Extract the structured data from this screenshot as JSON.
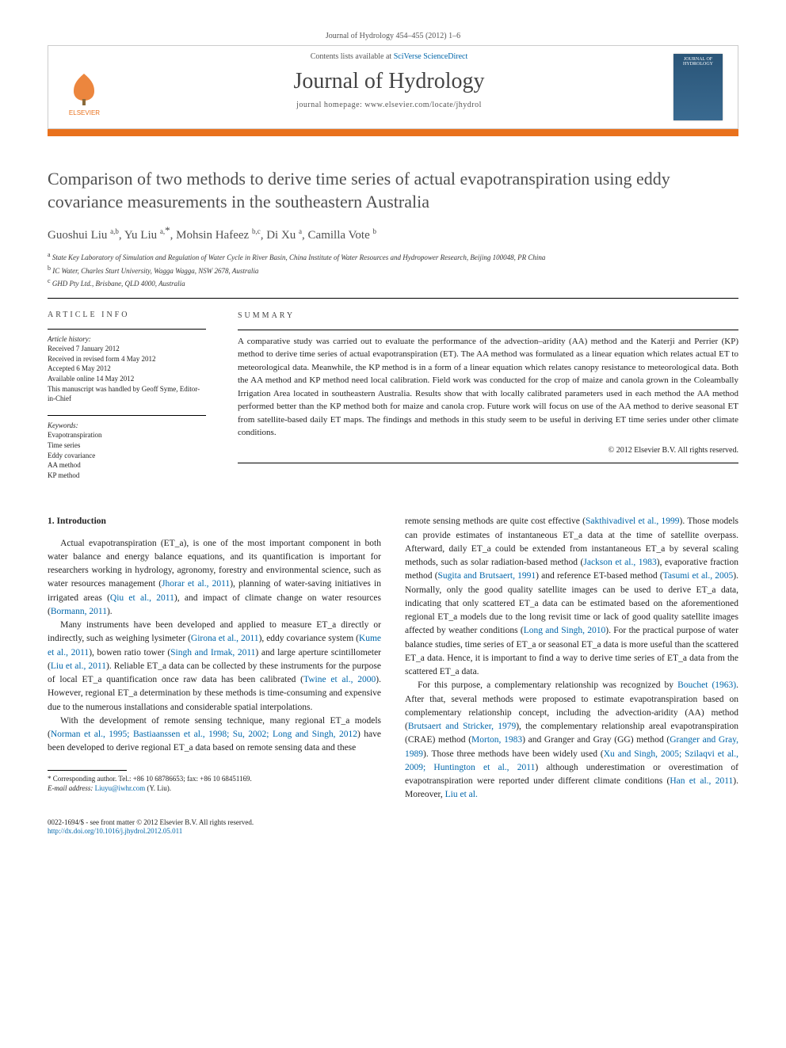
{
  "top_citation": "Journal of Hydrology 454–455 (2012) 1–6",
  "header": {
    "contents_prefix": "Contents lists available at ",
    "contents_link": "SciVerse ScienceDirect",
    "journal_title": "Journal of Hydrology",
    "homepage_prefix": "journal homepage: ",
    "homepage_url": "www.elsevier.com/locate/jhydrol",
    "publisher_name": "ELSEVIER",
    "cover_text": "JOURNAL OF HYDROLOGY"
  },
  "article": {
    "title": "Comparison of two methods to derive time series of actual evapotranspiration using eddy covariance measurements in the southeastern Australia",
    "authors_html": "Guoshui Liu <sup>a,b</sup>, Yu Liu <sup>a,</sup><span class='star'>*</span>, Mohsin Hafeez <sup>b,c</sup>, Di Xu <sup>a</sup>, Camilla Vote <sup>b</sup>",
    "affiliations": [
      {
        "sup": "a",
        "text": "State Key Laboratory of Simulation and Regulation of Water Cycle in River Basin, China Institute of Water Resources and Hydropower Research, Beijing 100048, PR China"
      },
      {
        "sup": "b",
        "text": "IC Water, Charles Sturt University, Wagga Wagga, NSW 2678, Australia"
      },
      {
        "sup": "c",
        "text": "GHD Pty Ltd., Brisbane, QLD 4000, Australia"
      }
    ]
  },
  "article_info": {
    "heading": "article info",
    "history_label": "Article history:",
    "history": [
      "Received 7 January 2012",
      "Received in revised form 4 May 2012",
      "Accepted 6 May 2012",
      "Available online 14 May 2012",
      "This manuscript was handled by Geoff Syme, Editor-in-Chief"
    ],
    "keywords_label": "Keywords:",
    "keywords": [
      "Evapotranspiration",
      "Time series",
      "Eddy covariance",
      "AA method",
      "KP method"
    ]
  },
  "summary": {
    "heading": "summary",
    "text": "A comparative study was carried out to evaluate the performance of the advection–aridity (AA) method and the Katerji and Perrier (KP) method to derive time series of actual evapotranspiration (ET). The AA method was formulated as a linear equation which relates actual ET to meteorological data. Meanwhile, the KP method is in a form of a linear equation which relates canopy resistance to meteorological data. Both the AA method and KP method need local calibration. Field work was conducted for the crop of maize and canola grown in the Coleambally Irrigation Area located in southeastern Australia. Results show that with locally calibrated parameters used in each method the AA method performed better than the KP method both for maize and canola crop. Future work will focus on use of the AA method to derive seasonal ET from satellite-based daily ET maps. The findings and methods in this study seem to be useful in deriving ET time series under other climate conditions.",
    "copyright": "© 2012 Elsevier B.V. All rights reserved."
  },
  "body": {
    "section1_heading": "1. Introduction",
    "col1_p1": "Actual evapotranspiration (ET_a), is one of the most important component in both water balance and energy balance equations, and its quantification is important for researchers working in hydrology, agronomy, forestry and environmental science, such as water resources management (<span class='ref-link'>Jhorar et al., 2011</span>), planning of water-saving initiatives in irrigated areas (<span class='ref-link'>Qiu et al., 2011</span>), and impact of climate change on water resources (<span class='ref-link'>Bormann, 2011</span>).",
    "col1_p2": "Many instruments have been developed and applied to measure ET_a directly or indirectly, such as weighing lysimeter (<span class='ref-link'>Girona et al., 2011</span>), eddy covariance system (<span class='ref-link'>Kume et al., 2011</span>), bowen ratio tower (<span class='ref-link'>Singh and Irmak, 2011</span>) and large aperture scintillometer (<span class='ref-link'>Liu et al., 2011</span>). Reliable ET_a data can be collected by these instruments for the purpose of local ET_a quantification once raw data has been calibrated (<span class='ref-link'>Twine et al., 2000</span>). However, regional ET_a determination by these methods is time-consuming and expensive due to the numerous installations and considerable spatial interpolations.",
    "col1_p3": "With the development of remote sensing technique, many regional ET_a models (<span class='ref-link'>Norman et al., 1995; Bastiaanssen et al., 1998; Su, 2002; Long and Singh, 2012</span>) have been developed to derive regional ET_a data based on remote sensing data and these",
    "col2_p1": "remote sensing methods are quite cost effective (<span class='ref-link'>Sakthivadivel et al., 1999</span>). Those models can provide estimates of instantaneous ET_a data at the time of satellite overpass. Afterward, daily ET_a could be extended from instantaneous ET_a by several scaling methods, such as solar radiation-based method (<span class='ref-link'>Jackson et al., 1983</span>), evaporative fraction method (<span class='ref-link'>Sugita and Brutsaert, 1991</span>) and reference ET-based method (<span class='ref-link'>Tasumi et al., 2005</span>). Normally, only the good quality satellite images can be used to derive ET_a data, indicating that only scattered ET_a data can be estimated based on the aforementioned regional ET_a models due to the long revisit time or lack of good quality satellite images affected by weather conditions (<span class='ref-link'>Long and Singh, 2010</span>). For the practical purpose of water balance studies, time series of ET_a or seasonal ET_a data is more useful than the scattered ET_a data. Hence, it is important to find a way to derive time series of ET_a data from the scattered ET_a data.",
    "col2_p2": "For this purpose, a complementary relationship was recognized by <span class='ref-link'>Bouchet (1963)</span>. After that, several methods were proposed to estimate evapotranspiration based on complementary relationship concept, including the advection-aridity (AA) method (<span class='ref-link'>Brutsaert and Stricker, 1979</span>), the complementary relationship areal evapotranspiration (CRAE) method (<span class='ref-link'>Morton, 1983</span>) and Granger and Gray (GG) method (<span class='ref-link'>Granger and Gray, 1989</span>). Those three methods have been widely used (<span class='ref-link'>Xu and Singh, 2005; Szilaqvi et al., 2009; Huntington et al., 2011</span>) although underestimation or overestimation of evapotranspiration were reported under different climate conditions (<span class='ref-link'>Han et al., 2011</span>). Moreover, <span class='ref-link'>Liu et al.</span>"
  },
  "footnote": {
    "corr_label": "* Corresponding author. Tel.: +86 10 68786653; fax: +86 10 68451169.",
    "email_label": "E-mail address:",
    "email": "Liuyu@iwhr.com",
    "email_name": "(Y. Liu)."
  },
  "bottom": {
    "issn_line": "0022-1694/$ - see front matter © 2012 Elsevier B.V. All rights reserved.",
    "doi": "http://dx.doi.org/10.1016/j.jhydrol.2012.05.011"
  },
  "colors": {
    "orange": "#e9711c",
    "link": "#0066aa",
    "text": "#222222",
    "gray_text": "#505050"
  }
}
